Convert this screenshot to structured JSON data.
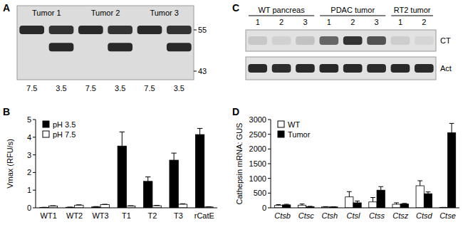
{
  "blot_a": {
    "label": "A",
    "groups": [
      "Tumor 1",
      "Tumor 2",
      "Tumor 3"
    ],
    "lane_labels": [
      "7.5",
      "3.5",
      "7.5",
      "3.5",
      "7.5",
      "3.5"
    ],
    "markers": [
      55,
      43
    ],
    "bands": [
      {
        "kda": 55,
        "intensity": [
          0.9,
          0.85,
          0.9,
          0.85,
          0.9,
          0.85
        ]
      },
      {
        "kda": 50,
        "intensity": [
          0,
          0.9,
          0,
          0.9,
          0,
          0.9
        ]
      }
    ]
  },
  "blot_c": {
    "label": "C",
    "groups": [
      {
        "label": "WT pancreas",
        "lanes": 3
      },
      {
        "label": "PDAC tumor",
        "lanes": 3
      },
      {
        "label": "RT2 tumor",
        "lanes": 2
      }
    ],
    "lane_labels": [
      "1",
      "2",
      "3",
      "1",
      "2",
      "3",
      "1",
      "2"
    ],
    "rows": [
      {
        "label": "CT",
        "intensity": [
          0.12,
          0.08,
          0.15,
          0.6,
          0.85,
          0.7,
          0.1,
          0.06
        ]
      },
      {
        "label": "Act",
        "intensity": [
          0.9,
          0.88,
          0.9,
          0.9,
          0.9,
          0.88,
          0.9,
          0.9
        ]
      }
    ]
  },
  "chart_data": [
    {
      "type": "bar",
      "title": "B",
      "y_label": "Vmax (RFU/s)",
      "categories": [
        "WT1",
        "WT2",
        "WT3",
        "T1",
        "T2",
        "T3",
        "rCatE"
      ],
      "ylim": [
        0,
        5
      ],
      "yticks": [
        0,
        1,
        2,
        3,
        4,
        5
      ],
      "legend": "upper left",
      "series": [
        {
          "name": "pH 3.5",
          "color": "#000000",
          "values": [
            0.02,
            0.03,
            0.05,
            3.5,
            1.5,
            2.7,
            4.15
          ],
          "errors": [
            0.01,
            0.01,
            0.02,
            0.8,
            0.25,
            0.4,
            0.35
          ]
        },
        {
          "name": "pH 7.5",
          "color": "#ffffff",
          "values": [
            0.1,
            0.15,
            0.18,
            0.1,
            0.12,
            0.2,
            0.05
          ],
          "errors": [
            0.02,
            0.02,
            0.02,
            0.02,
            0.02,
            0.03,
            0.01
          ]
        }
      ]
    },
    {
      "type": "bar",
      "title": "D",
      "y_label": "Cathepsin mRNA: GUS",
      "categories": [
        "Ctsb",
        "Ctsc",
        "Ctsh",
        "Ctsl",
        "Ctss",
        "Ctsz",
        "Ctsd",
        "Ctse"
      ],
      "ylim": [
        0,
        3000
      ],
      "yticks": [
        0,
        500,
        1000,
        1500,
        2000,
        2500,
        3000
      ],
      "legend": "upper left",
      "series": [
        {
          "name": "WT",
          "color": "#ffffff",
          "values": [
            80,
            90,
            30,
            370,
            200,
            120,
            750,
            10
          ],
          "errors": [
            30,
            40,
            10,
            180,
            150,
            50,
            170,
            5
          ]
        },
        {
          "name": "Tumor",
          "color": "#000000",
          "values": [
            100,
            40,
            30,
            170,
            600,
            130,
            480,
            2550
          ],
          "errors": [
            20,
            10,
            5,
            60,
            120,
            20,
            60,
            320
          ]
        }
      ]
    }
  ]
}
